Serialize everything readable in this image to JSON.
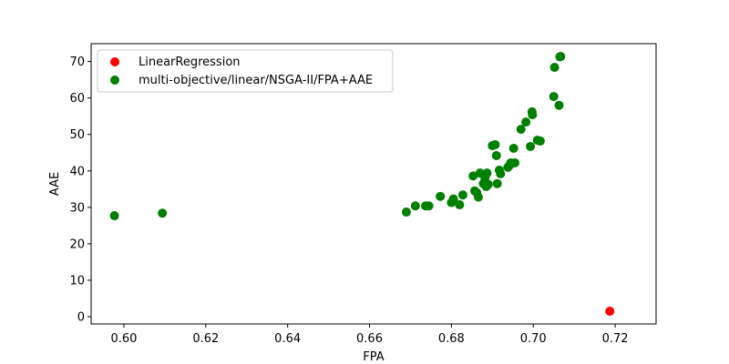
{
  "chart_data": {
    "type": "scatter",
    "title": "",
    "xlabel": "FPA",
    "ylabel": "AAE",
    "xlim": [
      0.592,
      0.73
    ],
    "ylim": [
      -2.0,
      74.9
    ],
    "xticks": [
      0.6,
      0.62,
      0.64,
      0.66,
      0.68,
      0.7,
      0.72
    ],
    "xtick_labels": [
      "0.60",
      "0.62",
      "0.64",
      "0.66",
      "0.68",
      "0.70",
      "0.72"
    ],
    "yticks": [
      0,
      10,
      20,
      30,
      40,
      50,
      60,
      70
    ],
    "ytick_labels": [
      "0",
      "10",
      "20",
      "30",
      "40",
      "50",
      "60",
      "70"
    ],
    "grid": false,
    "legend_position": "top-left",
    "series": [
      {
        "name": "LinearRegression",
        "color": "#ff0000",
        "points": [
          [
            0.7187,
            1.5
          ]
        ]
      },
      {
        "name": "multi-objective/linear/NSGA-II/FPA+AAE",
        "color": "#008000",
        "points": [
          [
            0.5977,
            27.7
          ],
          [
            0.6094,
            28.4
          ],
          [
            0.669,
            28.7
          ],
          [
            0.6712,
            30.4
          ],
          [
            0.6737,
            30.4
          ],
          [
            0.6745,
            30.4
          ],
          [
            0.6773,
            33.0
          ],
          [
            0.68,
            31.3
          ],
          [
            0.6805,
            32.3
          ],
          [
            0.682,
            30.7
          ],
          [
            0.6828,
            33.4
          ],
          [
            0.6853,
            38.6
          ],
          [
            0.6857,
            34.5
          ],
          [
            0.6862,
            34.0
          ],
          [
            0.6866,
            32.8
          ],
          [
            0.687,
            39.4
          ],
          [
            0.6878,
            36.5
          ],
          [
            0.6882,
            38.0
          ],
          [
            0.6885,
            35.7
          ],
          [
            0.6887,
            39.4
          ],
          [
            0.689,
            36.3
          ],
          [
            0.69,
            46.9
          ],
          [
            0.6907,
            47.2
          ],
          [
            0.691,
            44.2
          ],
          [
            0.6912,
            36.5
          ],
          [
            0.6917,
            40.2
          ],
          [
            0.692,
            39.2
          ],
          [
            0.6938,
            41.0
          ],
          [
            0.6942,
            41.5
          ],
          [
            0.6945,
            42.2
          ],
          [
            0.6952,
            46.2
          ],
          [
            0.6955,
            42.2
          ],
          [
            0.697,
            51.4
          ],
          [
            0.6982,
            53.4
          ],
          [
            0.6993,
            46.7
          ],
          [
            0.6997,
            56.2
          ],
          [
            0.6998,
            55.4
          ],
          [
            0.701,
            48.4
          ],
          [
            0.7017,
            48.2
          ],
          [
            0.705,
            60.4
          ],
          [
            0.7052,
            68.4
          ],
          [
            0.7063,
            58.0
          ],
          [
            0.7065,
            71.3
          ],
          [
            0.7067,
            71.4
          ]
        ]
      }
    ]
  }
}
